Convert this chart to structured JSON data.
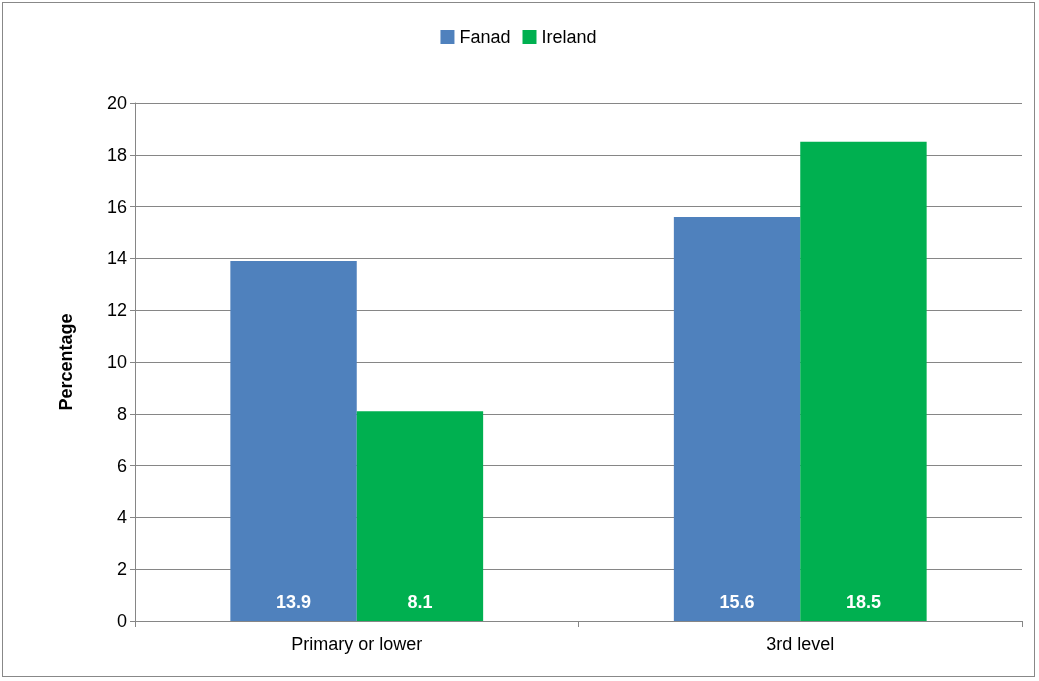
{
  "chart_data": {
    "type": "bar",
    "ylabel": "Percentage",
    "categories": [
      "Primary or lower",
      "3rd level"
    ],
    "series": [
      {
        "name": "Fanad",
        "color": "#4f81bd",
        "values": [
          13.9,
          15.6
        ]
      },
      {
        "name": "Ireland",
        "color": "#00b050",
        "values": [
          8.1,
          18.5
        ]
      }
    ],
    "ylim": [
      0,
      20
    ],
    "yticks": [
      0,
      2,
      4,
      6,
      8,
      10,
      12,
      14,
      16,
      18,
      20
    ],
    "grid": "y",
    "legend": "top",
    "data_labels": true
  }
}
